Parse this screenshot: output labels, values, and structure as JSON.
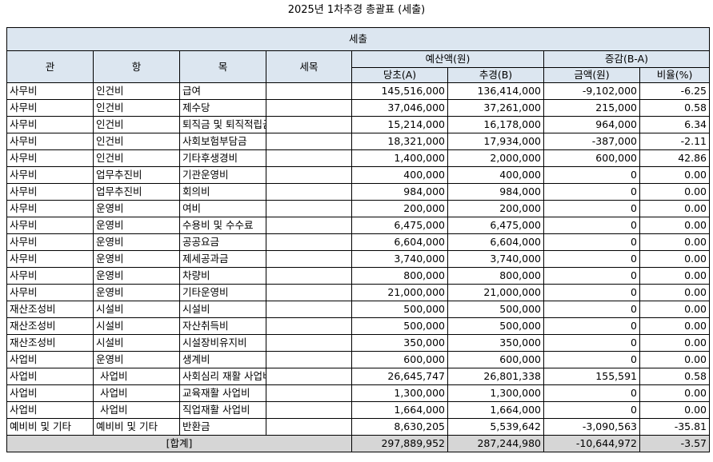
{
  "title": "2025년 1차추경 총괄표 (세출)",
  "table": {
    "section": "세출",
    "headers": {
      "gwan": "관",
      "hang": "항",
      "mok": "목",
      "semok": "세목",
      "budget_group": "예산액(원)",
      "diff_group": "증감(B-A)",
      "original": "당초(A)",
      "revised": "추경(B)",
      "diff_amount": "금액(원)",
      "diff_rate": "비율(%)"
    },
    "rows": [
      {
        "gwan": "사무비",
        "hang": "인건비",
        "mok": "급여",
        "semok": "",
        "a": "145,516,000",
        "b": "136,414,000",
        "diff": "-9,102,000",
        "rate": "-6.25"
      },
      {
        "gwan": "사무비",
        "hang": "인건비",
        "mok": "제수당",
        "semok": "",
        "a": "37,046,000",
        "b": "37,261,000",
        "diff": "215,000",
        "rate": "0.58"
      },
      {
        "gwan": "사무비",
        "hang": "인건비",
        "mok": "퇴직금 및 퇴직적립금",
        "semok": "",
        "a": "15,214,000",
        "b": "16,178,000",
        "diff": "964,000",
        "rate": "6.34"
      },
      {
        "gwan": "사무비",
        "hang": "인건비",
        "mok": "사회보험부담금",
        "semok": "",
        "a": "18,321,000",
        "b": "17,934,000",
        "diff": "-387,000",
        "rate": "-2.11"
      },
      {
        "gwan": "사무비",
        "hang": "인건비",
        "mok": "기타후생경비",
        "semok": "",
        "a": "1,400,000",
        "b": "2,000,000",
        "diff": "600,000",
        "rate": "42.86"
      },
      {
        "gwan": "사무비",
        "hang": "업무추진비",
        "mok": "기관운영비",
        "semok": "",
        "a": "400,000",
        "b": "400,000",
        "diff": "0",
        "rate": "0.00"
      },
      {
        "gwan": "사무비",
        "hang": "업무추진비",
        "mok": "회의비",
        "semok": "",
        "a": "984,000",
        "b": "984,000",
        "diff": "0",
        "rate": "0.00"
      },
      {
        "gwan": "사무비",
        "hang": "운영비",
        "mok": "여비",
        "semok": "",
        "a": "200,000",
        "b": "200,000",
        "diff": "0",
        "rate": "0.00"
      },
      {
        "gwan": "사무비",
        "hang": "운영비",
        "mok": "수용비 및 수수료",
        "semok": "",
        "a": "6,475,000",
        "b": "6,475,000",
        "diff": "0",
        "rate": "0.00"
      },
      {
        "gwan": "사무비",
        "hang": "운영비",
        "mok": "공공요금",
        "semok": "",
        "a": "6,604,000",
        "b": "6,604,000",
        "diff": "0",
        "rate": "0.00"
      },
      {
        "gwan": "사무비",
        "hang": "운영비",
        "mok": "제세공과금",
        "semok": "",
        "a": "3,740,000",
        "b": "3,740,000",
        "diff": "0",
        "rate": "0.00"
      },
      {
        "gwan": "사무비",
        "hang": "운영비",
        "mok": "차량비",
        "semok": "",
        "a": "800,000",
        "b": "800,000",
        "diff": "0",
        "rate": "0.00"
      },
      {
        "gwan": "사무비",
        "hang": "운영비",
        "mok": "기타운영비",
        "semok": "",
        "a": "21,000,000",
        "b": "21,000,000",
        "diff": "0",
        "rate": "0.00"
      },
      {
        "gwan": "재산조성비",
        "hang": "시설비",
        "mok": "시설비",
        "semok": "",
        "a": "500,000",
        "b": "500,000",
        "diff": "0",
        "rate": "0.00"
      },
      {
        "gwan": "재산조성비",
        "hang": "시설비",
        "mok": "자산취득비",
        "semok": "",
        "a": "500,000",
        "b": "500,000",
        "diff": "0",
        "rate": "0.00"
      },
      {
        "gwan": "재산조성비",
        "hang": "시설비",
        "mok": "시설장비유지비",
        "semok": "",
        "a": "350,000",
        "b": "350,000",
        "diff": "0",
        "rate": "0.00"
      },
      {
        "gwan": "사업비",
        "hang": "운영비",
        "mok": "생계비",
        "semok": "",
        "a": "600,000",
        "b": "600,000",
        "diff": "0",
        "rate": "0.00"
      },
      {
        "gwan": "사업비",
        "hang": "사업비",
        "mok": "사회심리 재활 사업비",
        "semok": "",
        "a": "26,645,747",
        "b": "26,801,338",
        "diff": "155,591",
        "rate": "0.58",
        "indent": true
      },
      {
        "gwan": "사업비",
        "hang": "사업비",
        "mok": "교육재활 사업비",
        "semok": "",
        "a": "1,300,000",
        "b": "1,300,000",
        "diff": "0",
        "rate": "0.00",
        "indent": true
      },
      {
        "gwan": "사업비",
        "hang": "사업비",
        "mok": "직업재활 사업비",
        "semok": "",
        "a": "1,664,000",
        "b": "1,664,000",
        "diff": "0",
        "rate": "0.00",
        "indent": true
      },
      {
        "gwan": "예비비 및 기타",
        "hang": "예비비 및 기타",
        "mok": "반환금",
        "semok": "",
        "a": "8,630,205",
        "b": "5,539,642",
        "diff": "-3,090,563",
        "rate": "-35.81"
      }
    ],
    "total": {
      "label": "[합계]",
      "a": "297,889,952",
      "b": "287,244,980",
      "diff": "-10,644,972",
      "rate": "-3.57"
    }
  }
}
